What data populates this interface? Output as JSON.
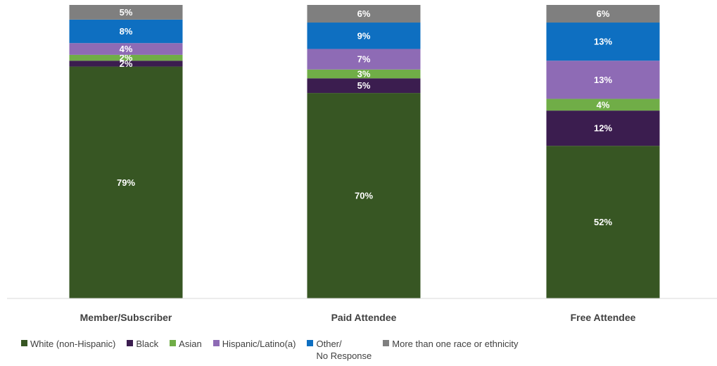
{
  "chart_data": {
    "type": "bar",
    "stacked": true,
    "categories": [
      "Member/Subscriber",
      "Paid Attendee",
      "Free Attendee"
    ],
    "series": [
      {
        "name": "White (non-Hispanic)",
        "color": "#375623",
        "values": [
          79,
          70,
          52
        ],
        "labels": [
          "79%",
          "70%",
          "52%"
        ]
      },
      {
        "name": "Black",
        "color": "#3b1d4f",
        "values": [
          2,
          5,
          12
        ],
        "labels": [
          "2%",
          "5%",
          "12%"
        ]
      },
      {
        "name": "Asian",
        "color": "#70ad47",
        "values": [
          2,
          3,
          4
        ],
        "labels": [
          "2%",
          "3%",
          "4%"
        ]
      },
      {
        "name": "Hispanic/Latino(a)",
        "color": "#8e6bb5",
        "values": [
          4,
          7,
          13
        ],
        "labels": [
          "4%",
          "7%",
          "13%"
        ]
      },
      {
        "name": "Other/\nNo Response",
        "color": "#0e6fc1",
        "values": [
          8,
          9,
          13
        ],
        "labels": [
          "8%",
          "9%",
          "13%"
        ]
      },
      {
        "name": "More than one race or ethnicity",
        "color": "#7f7f7f",
        "values": [
          5,
          6,
          6
        ],
        "labels": [
          "5%",
          "6%",
          "6%"
        ]
      }
    ],
    "ylim": [
      0,
      100
    ],
    "grid": false,
    "legend_position": "bottom"
  }
}
